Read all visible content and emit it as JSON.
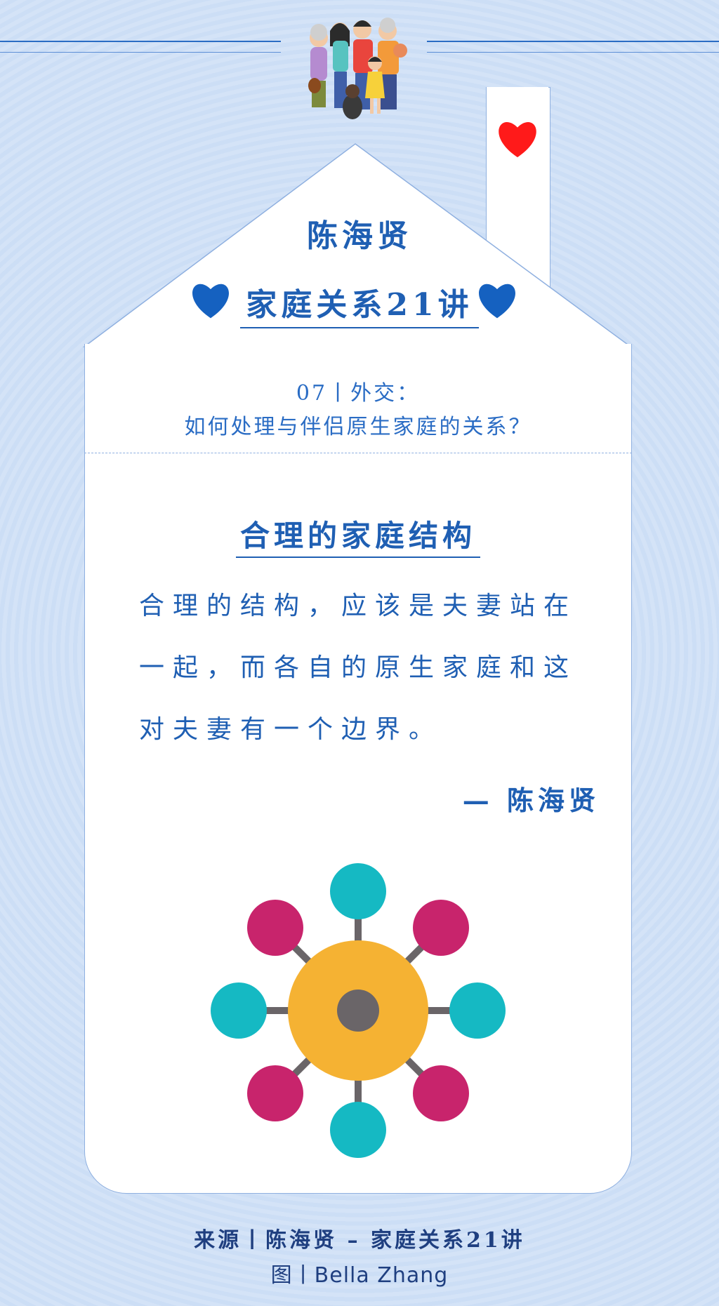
{
  "header": {
    "title": "陈海贤",
    "series": "家庭关系21讲"
  },
  "episode": {
    "line1": "07丨外交：",
    "line2": "如何处理与伴侣原生家庭的关系？"
  },
  "section": {
    "title": "合理的家庭结构"
  },
  "quote": {
    "text": "合理的结构，应该是夫妻站在一起，而各自的原生家庭和这对夫妻有一个边界。",
    "attribution": "— 陈海贤"
  },
  "footer": {
    "source": "来源丨陈海贤 – 家庭关系21讲",
    "credit": "图丨Bella Zhang"
  },
  "colors": {
    "accent": "#1f5fb3",
    "hub_center": "#f5b233",
    "hub_core": "#6a6568",
    "node_teal": "#15b9c3",
    "node_magenta": "#c8246c",
    "heart_red": "#ff1a1a"
  },
  "icons": [
    "family-illustration-icon",
    "red-heart-icon",
    "blue-heart-icon",
    "family-network-hub-icon"
  ]
}
